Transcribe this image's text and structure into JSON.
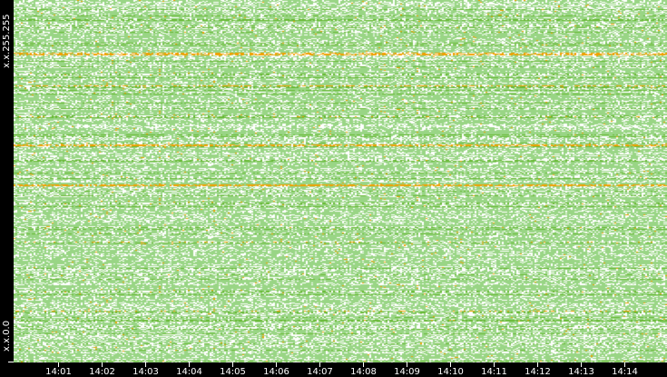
{
  "chart_data": {
    "type": "heatmap",
    "title": "",
    "xlabel": "",
    "ylabel": "",
    "x_tick_labels": [
      "14:01",
      "14:02",
      "14:03",
      "14:04",
      "14:05",
      "14:06",
      "14:07",
      "14:08",
      "14:09",
      "14:10",
      "14:11",
      "14:12",
      "14:13",
      "14:14"
    ],
    "y_tick_labels": [
      "x.x.255.255",
      "x.x.0.0"
    ],
    "xlim": [
      "14:00",
      "14:15"
    ],
    "ylim": [
      "x.x.0.0",
      "x.x.255.255"
    ],
    "grid": false,
    "colors": {
      "background": "#ffffff",
      "low": "#99d585",
      "medium": "#66b832",
      "high": "#f0a000",
      "frame": "#000000"
    }
  }
}
